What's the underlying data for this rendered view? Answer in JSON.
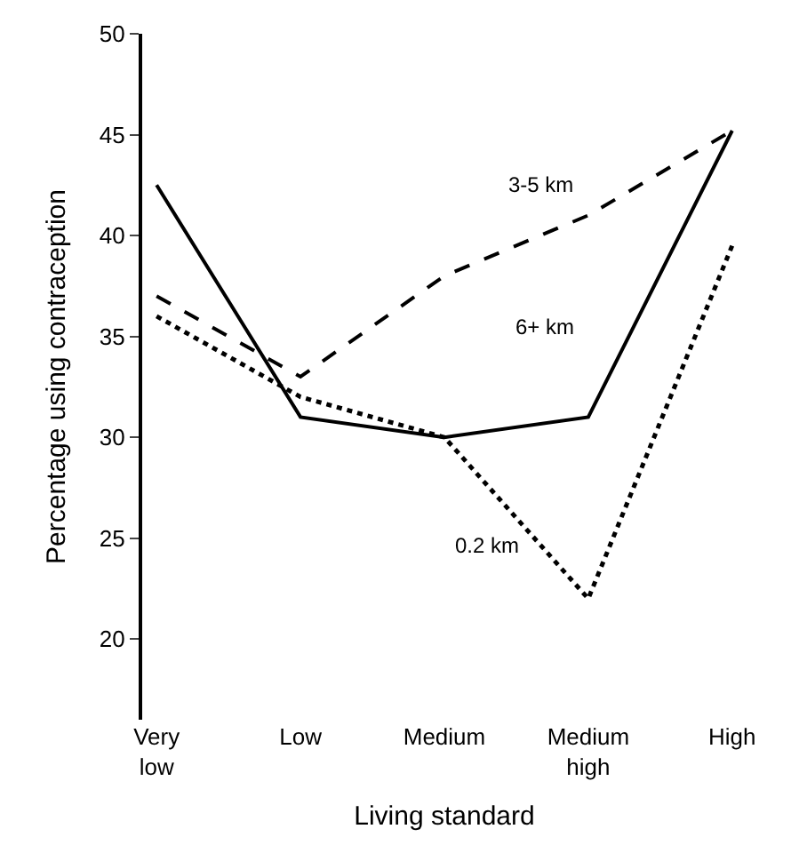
{
  "chart_data": {
    "type": "line",
    "xlabel": "Living standard",
    "ylabel": "Percentage using contraception",
    "categories": [
      "Very\nlow",
      "Low",
      "Medium",
      "Medium\nhigh",
      "High"
    ],
    "series": [
      {
        "name": "3-5 km",
        "color": "#000000",
        "line_style": "dashed",
        "values": [
          37,
          33,
          38,
          41,
          45.2
        ]
      },
      {
        "name": "6+ km",
        "color": "#000000",
        "line_style": "solid",
        "values": [
          42.5,
          31,
          30,
          31,
          45.2
        ]
      },
      {
        "name": "0.2 km",
        "color": "#000000",
        "line_style": "dotted",
        "values": [
          36,
          32,
          30,
          22,
          39.5
        ]
      }
    ],
    "ylim": [
      16,
      50
    ],
    "yticks": [
      20,
      25,
      30,
      35,
      40,
      45,
      50
    ],
    "legend": false,
    "marker": "none"
  }
}
